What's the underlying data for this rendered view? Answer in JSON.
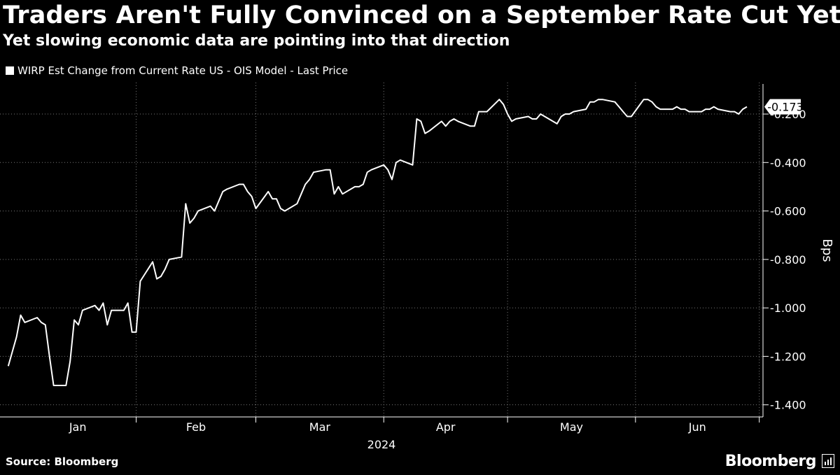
{
  "title": "Traders Aren't Fully Convinced on a September Rate Cut Yet",
  "subtitle": "Yet slowing economic data are pointing into that direction",
  "legend_label": "WIRP Est Change from Current Rate US - OIS Model - Last Price",
  "source": "Source: Bloomberg",
  "brand": "Bloomberg",
  "brand_icon": "bloomberg-terminal-icon",
  "colors": {
    "background": "#000000",
    "line": "#ffffff",
    "grid": "#777777",
    "text": "#ffffff"
  },
  "chart_data": {
    "type": "line",
    "title": "Traders Aren't Fully Convinced on a September Rate Cut Yet",
    "ylabel": "Bps",
    "xlabel": "2024",
    "ylim": [
      -1.45,
      -0.07
    ],
    "yticks": [
      -0.2,
      -0.4,
      -0.6,
      -0.8,
      -1.0,
      -1.2,
      -1.4
    ],
    "ytick_labels": [
      "-0.200",
      "-0.400",
      "-0.600",
      "-0.800",
      "-1.000",
      "-1.200",
      "-1.400"
    ],
    "month_labels": [
      "Jan",
      "Feb",
      "Mar",
      "Apr",
      "May",
      "Jun"
    ],
    "year_label": "2024",
    "last_value_label": "-0.173",
    "grid": "vertical dotted at month boundaries, horizontal dotted at y ticks",
    "series": [
      {
        "name": "WIRP Est Change from Current Rate US - OIS Model - Last Price",
        "x": [
          "2024-01-01",
          "2024-01-02",
          "2024-01-03",
          "2024-01-04",
          "2024-01-05",
          "2024-01-08",
          "2024-01-09",
          "2024-01-10",
          "2024-01-11",
          "2024-01-12",
          "2024-01-15",
          "2024-01-16",
          "2024-01-17",
          "2024-01-18",
          "2024-01-19",
          "2024-01-22",
          "2024-01-23",
          "2024-01-24",
          "2024-01-25",
          "2024-01-26",
          "2024-01-29",
          "2024-01-30",
          "2024-01-31",
          "2024-02-01",
          "2024-02-02",
          "2024-02-05",
          "2024-02-06",
          "2024-02-07",
          "2024-02-08",
          "2024-02-09",
          "2024-02-12",
          "2024-02-13",
          "2024-02-14",
          "2024-02-15",
          "2024-02-16",
          "2024-02-19",
          "2024-02-20",
          "2024-02-21",
          "2024-02-22",
          "2024-02-23",
          "2024-02-26",
          "2024-02-27",
          "2024-02-28",
          "2024-02-29",
          "2024-03-01",
          "2024-03-04",
          "2024-03-05",
          "2024-03-06",
          "2024-03-07",
          "2024-03-08",
          "2024-03-11",
          "2024-03-12",
          "2024-03-13",
          "2024-03-14",
          "2024-03-15",
          "2024-03-18",
          "2024-03-19",
          "2024-03-20",
          "2024-03-21",
          "2024-03-22",
          "2024-03-25",
          "2024-03-26",
          "2024-03-27",
          "2024-03-28",
          "2024-03-29",
          "2024-04-01",
          "2024-04-02",
          "2024-04-03",
          "2024-04-04",
          "2024-04-05",
          "2024-04-08",
          "2024-04-09",
          "2024-04-10",
          "2024-04-11",
          "2024-04-12",
          "2024-04-15",
          "2024-04-16",
          "2024-04-17",
          "2024-04-18",
          "2024-04-19",
          "2024-04-22",
          "2024-04-23",
          "2024-04-24",
          "2024-04-25",
          "2024-04-26",
          "2024-04-29",
          "2024-04-30",
          "2024-05-01",
          "2024-05-02",
          "2024-05-03",
          "2024-05-06",
          "2024-05-07",
          "2024-05-08",
          "2024-05-09",
          "2024-05-10",
          "2024-05-13",
          "2024-05-14",
          "2024-05-15",
          "2024-05-16",
          "2024-05-17",
          "2024-05-20",
          "2024-05-21",
          "2024-05-22",
          "2024-05-23",
          "2024-05-24",
          "2024-05-27",
          "2024-05-28",
          "2024-05-29",
          "2024-05-30",
          "2024-05-31",
          "2024-06-03",
          "2024-06-04",
          "2024-06-05",
          "2024-06-06",
          "2024-06-07",
          "2024-06-10",
          "2024-06-11",
          "2024-06-12",
          "2024-06-13",
          "2024-06-14",
          "2024-06-17",
          "2024-06-18",
          "2024-06-19",
          "2024-06-20",
          "2024-06-21",
          "2024-06-24",
          "2024-06-25",
          "2024-06-26",
          "2024-06-27",
          "2024-06-28"
        ],
        "values": [
          -1.24,
          -1.18,
          -1.12,
          -1.03,
          -1.06,
          -1.04,
          -1.06,
          -1.07,
          -1.2,
          -1.32,
          -1.32,
          -1.22,
          -1.05,
          -1.07,
          -1.01,
          -0.99,
          -1.01,
          -0.98,
          -1.07,
          -1.01,
          -1.01,
          -0.98,
          -1.1,
          -1.1,
          -0.89,
          -0.81,
          -0.88,
          -0.87,
          -0.84,
          -0.8,
          -0.79,
          -0.57,
          -0.65,
          -0.63,
          -0.6,
          -0.58,
          -0.6,
          -0.56,
          -0.52,
          -0.51,
          -0.49,
          -0.49,
          -0.52,
          -0.54,
          -0.59,
          -0.52,
          -0.55,
          -0.55,
          -0.59,
          -0.6,
          -0.57,
          -0.53,
          -0.49,
          -0.47,
          -0.44,
          -0.43,
          -0.43,
          -0.53,
          -0.5,
          -0.53,
          -0.5,
          -0.5,
          -0.49,
          -0.44,
          -0.43,
          -0.41,
          -0.43,
          -0.47,
          -0.4,
          -0.39,
          -0.41,
          -0.22,
          -0.23,
          -0.28,
          -0.27,
          -0.23,
          -0.25,
          -0.23,
          -0.22,
          -0.23,
          -0.25,
          -0.25,
          -0.19,
          -0.19,
          -0.19,
          -0.14,
          -0.16,
          -0.2,
          -0.23,
          -0.22,
          -0.21,
          -0.22,
          -0.22,
          -0.2,
          -0.21,
          -0.24,
          -0.21,
          -0.2,
          -0.2,
          -0.19,
          -0.18,
          -0.15,
          -0.15,
          -0.14,
          -0.14,
          -0.15,
          -0.17,
          -0.19,
          -0.21,
          -0.21,
          -0.14,
          -0.14,
          -0.15,
          -0.17,
          -0.18,
          -0.18,
          -0.17,
          -0.18,
          -0.18,
          -0.19,
          -0.19,
          -0.18,
          -0.18,
          -0.17,
          -0.18,
          -0.19,
          -0.19,
          -0.2,
          -0.18,
          -0.17
        ]
      }
    ]
  }
}
